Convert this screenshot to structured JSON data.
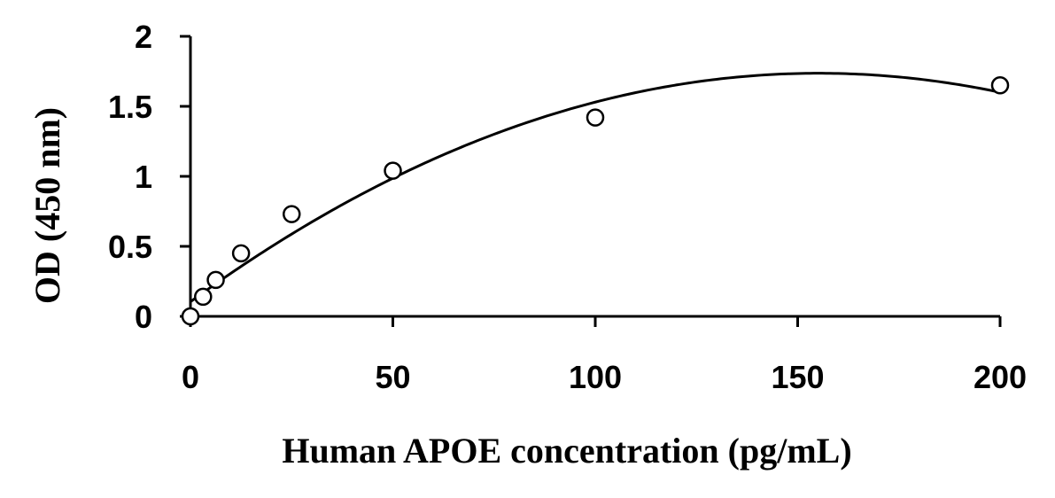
{
  "chart_data": {
    "type": "scatter",
    "title": "",
    "xlabel": "Human APOE concentration (pg/mL)",
    "ylabel": "OD (450 nm)",
    "xlim": [
      0,
      200
    ],
    "ylim": [
      0,
      2
    ],
    "xticks": [
      0,
      50,
      100,
      150,
      200
    ],
    "xtick_labels": [
      "0",
      "50",
      "100",
      "150",
      "200"
    ],
    "yticks": [
      0,
      0.5,
      1,
      1.5,
      2
    ],
    "ytick_labels": [
      "0",
      "0.5",
      "1",
      "1.5",
      "2"
    ],
    "grid": false,
    "legend": "none",
    "series": [
      {
        "marker": "open-circle",
        "x": [
          0,
          3.125,
          6.25,
          12.5,
          25,
          50,
          100,
          200
        ],
        "y": [
          0.0,
          0.14,
          0.26,
          0.45,
          0.73,
          1.04,
          1.42,
          1.65
        ]
      }
    ],
    "fit_curve": {
      "type": "polynomial-2",
      "coefficients": [
        0.104,
        0.02104,
        -6.78e-05
      ]
    },
    "colors": {
      "marks": "#000000",
      "background": "#ffffff"
    }
  }
}
